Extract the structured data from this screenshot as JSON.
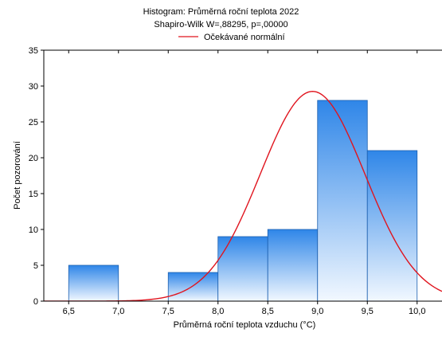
{
  "chart_data": {
    "type": "bar",
    "title": "Histogram: Průměrná roční teplota 2022",
    "subtitle": "Shapiro-Wilk W=,88295, p=,00000",
    "xlabel": "Průměrná roční teplota vzduchu (°C)",
    "ylabel": "Počet pozorování",
    "xlim": [
      6.25,
      10.25
    ],
    "ylim": [
      0,
      35
    ],
    "x_ticks": [
      6.5,
      7.0,
      7.5,
      8.0,
      8.5,
      9.0,
      9.5,
      10.0
    ],
    "x_tick_labels": [
      "6,5",
      "7,0",
      "7,5",
      "8,0",
      "8,5",
      "9,0",
      "9,5",
      "10,0"
    ],
    "y_ticks": [
      0,
      5,
      10,
      15,
      20,
      25,
      30,
      35
    ],
    "y_tick_labels": [
      "0",
      "5",
      "10",
      "15",
      "20",
      "25",
      "30",
      "35"
    ],
    "bins": [
      {
        "from": 6.5,
        "to": 7.0,
        "count": 5
      },
      {
        "from": 7.0,
        "to": 7.5,
        "count": 0
      },
      {
        "from": 7.5,
        "to": 8.0,
        "count": 4
      },
      {
        "from": 8.0,
        "to": 8.5,
        "count": 9
      },
      {
        "from": 8.5,
        "to": 9.0,
        "count": 10
      },
      {
        "from": 9.0,
        "to": 9.5,
        "count": 28
      },
      {
        "from": 9.5,
        "to": 10.0,
        "count": 21
      }
    ],
    "normal_curve": {
      "name": "Očekávané normální",
      "color": "#e0141e",
      "mean": 8.95,
      "sd": 0.525,
      "n": 77,
      "bin_width": 0.5
    },
    "bar_color_top": "#2f86e8",
    "bar_color_bottom": "#f2f8ff",
    "grid": false,
    "legend_position": "top-center"
  }
}
